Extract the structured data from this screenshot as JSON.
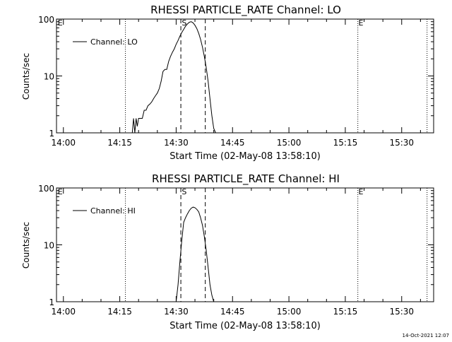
{
  "footer": {
    "timestamp": "14-Oct-2021 12:07"
  },
  "chart_data": [
    {
      "type": "line",
      "title": "RHESSI PARTICLE_RATE Channel: LO",
      "xlabel": "Start Time (02-May-08 13:58:10)",
      "ylabel": "Counts/sec",
      "y_scale": "log",
      "ylim": [
        1,
        100
      ],
      "xlim": [
        "13:58:10",
        "15:38:30"
      ],
      "y_ticks": [
        "1",
        "10",
        "100"
      ],
      "x_ticks": [
        "14:00",
        "14:15",
        "14:30",
        "14:45",
        "15:00",
        "15:15",
        "15:30"
      ],
      "legend": {
        "position": "top-left",
        "entries": [
          "Channel: LO"
        ]
      },
      "series": [
        {
          "name": "Channel: LO",
          "x": [
            "14:18:20",
            "14:18:40",
            "14:19:00",
            "14:19:20",
            "14:19:40",
            "14:20:00",
            "14:20:20",
            "14:20:40",
            "14:21:00",
            "14:21:30",
            "14:22:00",
            "14:22:30",
            "14:23:00",
            "14:23:30",
            "14:24:00",
            "14:24:30",
            "14:25:00",
            "14:25:30",
            "14:26:00",
            "14:26:30",
            "14:27:00",
            "14:27:30",
            "14:28:00",
            "14:28:30",
            "14:29:00",
            "14:29:30",
            "14:30:00",
            "14:30:30",
            "14:31:00",
            "14:31:30",
            "14:32:00",
            "14:32:30",
            "14:33:00",
            "14:33:30",
            "14:34:00",
            "14:34:30",
            "14:35:00",
            "14:35:30",
            "14:36:00",
            "14:36:30",
            "14:37:00",
            "14:37:30",
            "14:38:00",
            "14:38:30",
            "14:39:00",
            "14:39:30",
            "14:40:00",
            "14:40:30"
          ],
          "y": [
            1.0,
            1.8,
            1.0,
            1.8,
            1.3,
            1.8,
            1.8,
            1.8,
            1.8,
            2.5,
            2.5,
            3.0,
            3.2,
            3.5,
            4.0,
            4.5,
            5.0,
            6.0,
            8.0,
            12.0,
            13.0,
            13.0,
            18.0,
            22.0,
            26.0,
            30.0,
            36.0,
            42.0,
            50.0,
            58.0,
            66.0,
            75.0,
            82.0,
            88.0,
            90.0,
            86.0,
            78.0,
            68.0,
            56.0,
            44.0,
            32.0,
            22.0,
            14.0,
            8.0,
            4.0,
            2.0,
            1.2,
            1.0
          ]
        }
      ],
      "markers": {
        "dashed": [
          "14:31:15",
          "14:37:45"
        ],
        "dotted": [
          "14:16:30",
          "15:18:20",
          "15:36:45"
        ],
        "labels": [
          {
            "text": "S",
            "at": "14:31:30"
          },
          {
            "text": "E",
            "at": "15:18:30"
          },
          {
            "text": "E",
            "at": "13:58:30"
          }
        ]
      }
    },
    {
      "type": "line",
      "title": "RHESSI PARTICLE_RATE Channel: HI",
      "xlabel": "Start Time (02-May-08 13:58:10)",
      "ylabel": "Counts/sec",
      "y_scale": "log",
      "ylim": [
        1,
        100
      ],
      "xlim": [
        "13:58:10",
        "15:38:30"
      ],
      "y_ticks": [
        "1",
        "10",
        "100"
      ],
      "x_ticks": [
        "14:00",
        "14:15",
        "14:30",
        "14:45",
        "15:00",
        "15:15",
        "15:30"
      ],
      "legend": {
        "position": "top-left",
        "entries": [
          "Channel: HI"
        ]
      },
      "series": [
        {
          "name": "Channel: HI",
          "x": [
            "14:30:00",
            "14:30:30",
            "14:31:00",
            "14:31:30",
            "14:32:00",
            "14:32:30",
            "14:33:00",
            "14:33:30",
            "14:34:00",
            "14:34:30",
            "14:35:00",
            "14:35:30",
            "14:36:00",
            "14:36:30",
            "14:37:00",
            "14:37:30",
            "14:38:00",
            "14:38:30",
            "14:39:00",
            "14:39:30",
            "14:40:00"
          ],
          "y": [
            1.0,
            2.0,
            5.0,
            12.0,
            25.0,
            30.0,
            35.0,
            40.0,
            44.0,
            46.0,
            45.0,
            42.0,
            38.0,
            30.0,
            22.0,
            14.0,
            8.0,
            4.0,
            2.0,
            1.3,
            1.0
          ]
        }
      ],
      "markers": {
        "dashed": [
          "14:31:15",
          "14:37:45"
        ],
        "dotted": [
          "14:16:30",
          "15:18:20",
          "15:36:45"
        ],
        "labels": [
          {
            "text": "S",
            "at": "14:31:30"
          },
          {
            "text": "E",
            "at": "15:18:30"
          },
          {
            "text": "E",
            "at": "13:58:30"
          }
        ]
      }
    }
  ]
}
